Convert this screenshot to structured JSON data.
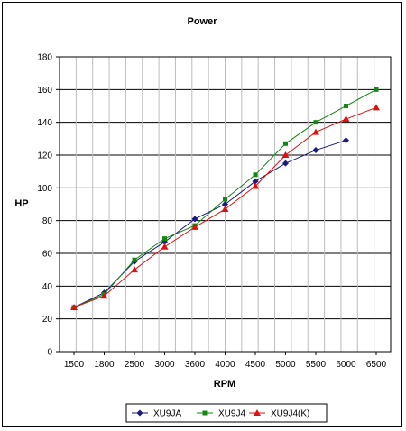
{
  "chart_data": {
    "type": "line",
    "title": "Power",
    "xlabel": "RPM",
    "ylabel": "HP",
    "categories": [
      "1500",
      "1800",
      "2500",
      "3000",
      "3600",
      "4000",
      "4500",
      "5000",
      "5500",
      "6000",
      "6500"
    ],
    "ylim": [
      0,
      180
    ],
    "yticks": [
      "0",
      "20",
      "40",
      "60",
      "80",
      "100",
      "120",
      "140",
      "160",
      "180"
    ],
    "grid": true,
    "legend_position": "bottom",
    "series": [
      {
        "name": "XU9JA",
        "color": "#1a1a80",
        "marker": "diamond",
        "values": [
          27,
          36,
          55,
          67,
          81,
          90,
          104,
          115,
          123,
          129,
          null
        ]
      },
      {
        "name": "XU9J4",
        "color": "#118811",
        "marker": "square",
        "values": [
          27,
          35,
          56,
          69,
          77,
          93,
          108,
          127,
          140,
          150,
          160
        ]
      },
      {
        "name": "XU9J4(K)",
        "color": "#e01010",
        "marker": "triangle",
        "values": [
          27,
          34,
          50,
          64,
          76,
          87,
          101,
          120,
          134,
          142,
          149
        ]
      }
    ]
  }
}
